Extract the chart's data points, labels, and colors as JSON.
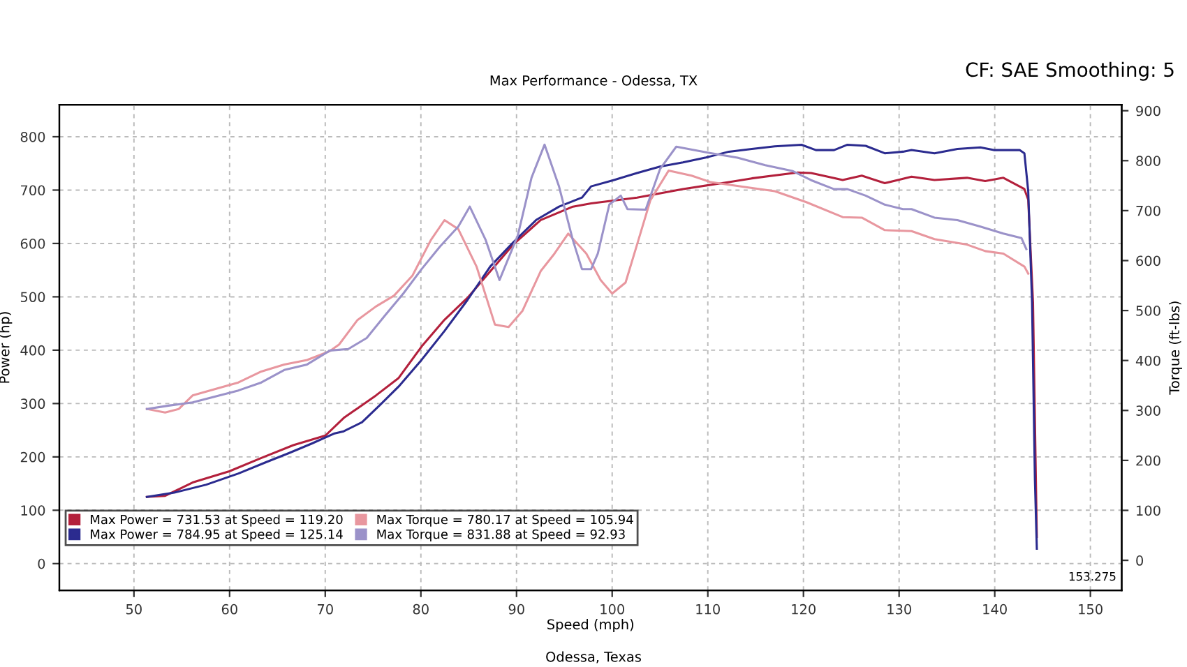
{
  "chart_data": {
    "type": "line",
    "subtitle": "Max Performance - Odessa, TX",
    "xlabel": "Speed (mph)",
    "ylabel": "Power (hp)",
    "y2label": "Torque (ft-lbs)",
    "annotations": [
      "CF: SAE Smoothing: 5",
      "Odessa, Texas",
      "153.275"
    ],
    "xlim": [
      42.2,
      153.275
    ],
    "ylim": [
      -50,
      860
    ],
    "y2lim": [
      -60,
      912
    ],
    "xticks": [
      50,
      60,
      70,
      80,
      90,
      100,
      110,
      120,
      130,
      140,
      150
    ],
    "yticks": [
      0,
      100,
      200,
      300,
      400,
      500,
      600,
      700,
      800
    ],
    "y2ticks": [
      0,
      100,
      200,
      300,
      400,
      500,
      600,
      700,
      800,
      900
    ],
    "grid": true,
    "legend": "bottom left",
    "line_style": "solid",
    "marker": "none",
    "series": [
      {
        "name": "Max Power = 731.53 at Speed = 119.20",
        "color": "#b3203c",
        "x": [
          51.35,
          53.26,
          56.13,
          59.97,
          63.32,
          66.67,
          70.02,
          71.93,
          75.29,
          77.68,
          80.08,
          82.47,
          84.87,
          87.26,
          89.66,
          92.53,
          95.89,
          97.8,
          102.6,
          107.4,
          112.2,
          114.6,
          119.4,
          120.8,
          124.1,
          126.1,
          128.5,
          131.3,
          133.7,
          137.1,
          139.0,
          140.9,
          143.1,
          143.5,
          144.0,
          144.3,
          144.4
        ],
        "values": [
          125,
          127,
          152,
          173,
          198,
          222,
          240,
          273,
          315,
          348,
          407,
          457,
          498,
          548,
          598,
          644,
          669,
          675,
          686,
          702,
          715,
          722,
          733,
          732,
          719,
          727,
          713,
          725,
          719,
          723,
          717,
          723,
          702,
          682,
          490,
          157,
          50
        ]
      },
      {
        "name": "Max Power = 784.95 at Speed = 125.14",
        "color": "#2b2b8f",
        "x": [
          51.35,
          54.22,
          57.57,
          60.93,
          63.8,
          66.19,
          68.59,
          70.98,
          71.93,
          73.85,
          75.77,
          77.68,
          80.08,
          82.47,
          84.87,
          87.26,
          89.66,
          92.05,
          94.45,
          96.84,
          97.8,
          100.2,
          102.6,
          105.0,
          107.4,
          109.8,
          112.2,
          114.6,
          117.0,
          119.8,
          121.3,
          123.2,
          124.6,
          126.5,
          128.5,
          130.4,
          131.3,
          133.7,
          136.1,
          138.5,
          139.9,
          142.6,
          143.1,
          143.5,
          143.9,
          144.2,
          144.4
        ],
        "values": [
          125,
          133,
          148,
          169,
          190,
          207,
          225,
          244,
          248,
          265,
          298,
          332,
          382,
          436,
          494,
          557,
          602,
          644,
          669,
          686,
          707,
          719,
          732,
          744,
          752,
          761,
          772,
          777,
          782,
          785,
          775,
          775,
          785,
          783,
          769,
          772,
          775,
          769,
          777,
          780,
          775,
          775,
          769,
          698,
          490,
          157,
          28
        ]
      },
      {
        "name": "Max Torque = 780.17 at Speed = 105.94",
        "color": "#e8979f",
        "axis": "y2",
        "x": [
          51.35,
          53.26,
          54.69,
          56.13,
          58.52,
          60.92,
          63.32,
          65.71,
          68.1,
          70.5,
          71.45,
          73.37,
          75.29,
          77.2,
          79.12,
          81.04,
          82.47,
          83.91,
          85.82,
          87.74,
          89.17,
          90.61,
          92.53,
          93.97,
          95.4,
          97.3,
          98.8,
          100.0,
          101.4,
          102.6,
          104.0,
          105.9,
          108.3,
          110.3,
          113.6,
          117.0,
          120.3,
          124.1,
          126.1,
          128.5,
          131.3,
          133.7,
          137.1,
          139.0,
          140.9,
          143.1,
          143.5
        ],
        "values": [
          303,
          296,
          303,
          330,
          343,
          356,
          378,
          392,
          401,
          419,
          432,
          481,
          508,
          530,
          570,
          641,
          681,
          663,
          588,
          472,
          467,
          499,
          579,
          614,
          654,
          614,
          561,
          534,
          556,
          632,
          721,
          780,
          770,
          757,
          748,
          739,
          717,
          687,
          686,
          661,
          659,
          643,
          632,
          619,
          614,
          588,
          574
        ]
      },
      {
        "name": "Max Torque = 831.88 at Speed = 92.93",
        "color": "#9b92c9",
        "axis": "y2",
        "x": [
          51.35,
          53.74,
          56.13,
          58.52,
          60.92,
          63.32,
          65.71,
          68.1,
          70.5,
          72.41,
          74.33,
          76.24,
          78.16,
          80.08,
          81.99,
          83.91,
          85.11,
          86.78,
          88.22,
          90.13,
          91.57,
          92.93,
          94.45,
          95.89,
          96.84,
          97.8,
          98.5,
          99.7,
          100.9,
          101.6,
          103.5,
          105.0,
          106.7,
          110.3,
          113.1,
          116.0,
          118.9,
          120.8,
          123.2,
          124.6,
          126.5,
          128.5,
          130.4,
          131.3,
          133.7,
          136.1,
          138.5,
          140.9,
          142.8,
          143.3
        ],
        "values": [
          303,
          310,
          316,
          328,
          340,
          356,
          381,
          392,
          420,
          423,
          445,
          490,
          534,
          583,
          628,
          668,
          708,
          641,
          561,
          650,
          766,
          832,
          748,
          641,
          583,
          583,
          614,
          712,
          730,
          703,
          702,
          783,
          828,
          815,
          806,
          791,
          779,
          761,
          743,
          743,
          730,
          712,
          703,
          703,
          686,
          681,
          668,
          654,
          645,
          623
        ]
      }
    ]
  }
}
